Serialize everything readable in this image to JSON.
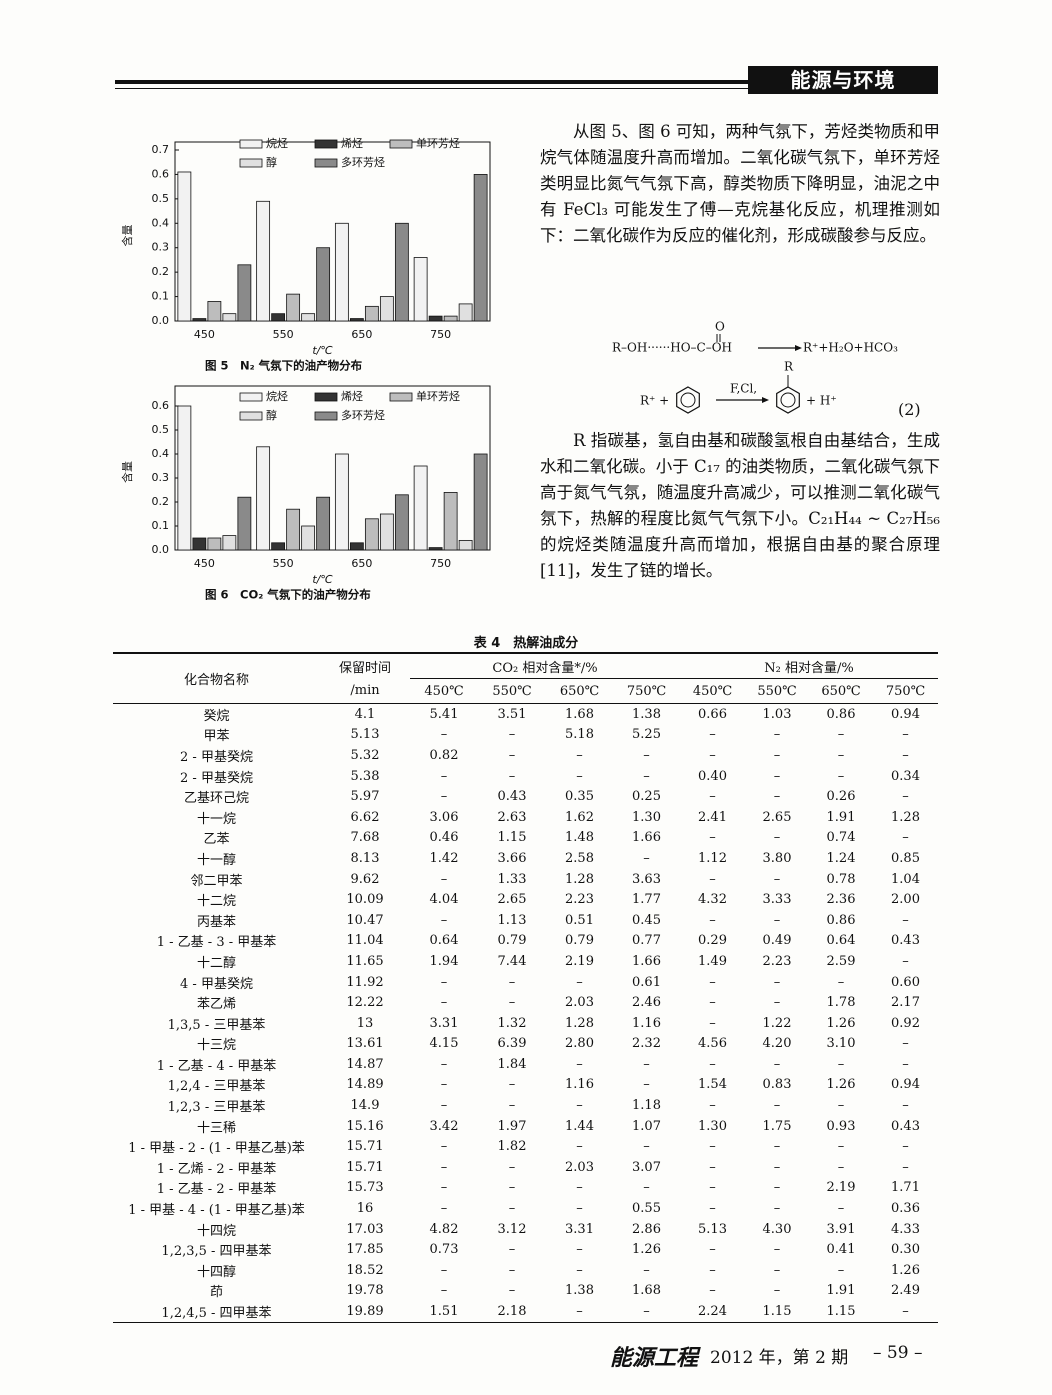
{
  "header": {
    "section": "能源与环境"
  },
  "chart_data": [
    {
      "type": "bar",
      "caption": "图 5　N₂ 气氛下的油产物分布",
      "ylabel": "含量",
      "xlabel": "t/℃",
      "categories": [
        "450",
        "550",
        "650",
        "750"
      ],
      "series": [
        {
          "name": "烷烃",
          "color": "#f2f2f2",
          "values": [
            0.61,
            0.49,
            0.4,
            0.26
          ]
        },
        {
          "name": "烯烃",
          "color": "#333333",
          "values": [
            0.01,
            0.03,
            0.01,
            0.02
          ]
        },
        {
          "name": "单环芳烃",
          "color": "#bdbdbd",
          "values": [
            0.08,
            0.11,
            0.06,
            0.02
          ]
        },
        {
          "name": "醇",
          "color": "#e0e0e0",
          "values": [
            0.03,
            0.03,
            0.1,
            0.07
          ]
        },
        {
          "name": "多环芳烃",
          "color": "#8a8a8a",
          "values": [
            0.23,
            0.3,
            0.4,
            0.6
          ]
        }
      ],
      "ylim": [
        0,
        0.7
      ],
      "yticks": [
        {
          "value": 0,
          "label": "0.0"
        },
        0.1,
        0.2,
        0.3,
        0.4,
        0.5,
        0.6,
        0.7
      ]
    },
    {
      "type": "bar",
      "caption": "图 6　CO₂ 气氛下的油产物分布",
      "ylabel": "含量",
      "xlabel": "t/℃",
      "categories": [
        "450",
        "550",
        "650",
        "750"
      ],
      "series": [
        {
          "name": "烷烃",
          "color": "#f2f2f2",
          "values": [
            0.6,
            0.43,
            0.4,
            0.35
          ]
        },
        {
          "name": "烯烃",
          "color": "#333333",
          "values": [
            0.05,
            0.03,
            0.03,
            0.01
          ]
        },
        {
          "name": "单环芳烃",
          "color": "#bdbdbd",
          "values": [
            0.05,
            0.17,
            0.13,
            0.24
          ]
        },
        {
          "name": "醇",
          "color": "#e0e0e0",
          "values": [
            0.06,
            0.1,
            0.15,
            0.04
          ]
        },
        {
          "name": "多环芳烃",
          "color": "#8a8a8a",
          "values": [
            0.22,
            0.22,
            0.23,
            0.4
          ]
        }
      ],
      "ylim": [
        0,
        0.65
      ],
      "yticks": [
        {
          "value": 0,
          "label": "0.0"
        },
        0.1,
        0.2,
        0.3,
        0.4,
        0.5,
        0.6
      ]
    }
  ],
  "body": {
    "paragraph1": "从图 5、图 6 可知，两种气氛下，芳烃类物质和甲烷气体随温度升高而增加。二氧化碳气氛下，单环芳烃类明显比氮气气氛下高，醇类物质下降明显，油泥之中有 FeCl₃ 可能发生了傅—克烷基化反应，机理推测如下：二氧化碳作为反应的催化剂，形成碳酸参与反应。",
    "equation": {
      "left": "R–OH······HO–C–OH",
      "oxygen": "O",
      "right": "R⁺+H₂O+HCO₃",
      "reactant": "R⁺ +",
      "catalyst": "F,Cl,",
      "substituent": "R",
      "product": "+ H⁺"
    },
    "equation_number": "(2)",
    "paragraph2": "R 指碳基，氢自由基和碳酸氢根自由基结合，生成水和二氧化碳。小于 C₁₇ 的油类物质，二氧化碳气氛下高于氮气气氛，随温度升高减少，可以推测二氧化碳气氛下，热解的程度比氮气气氛下小。C₂₁H₄₄ ~ C₂₇H₅₆ 的烷烃类随温度升高而增加，根据自由基的聚合原理[11]，发生了链的增长。"
  },
  "table": {
    "title": "表 4　热解油成分",
    "header": {
      "name": "化合物名称",
      "time": "保留时间",
      "time_unit": "/min",
      "co2": "CO₂ 相对含量*/%",
      "n2": "N₂ 相对含量/%",
      "temps_co2": [
        "450℃",
        "550℃",
        "650℃",
        "750℃"
      ],
      "temps_n2": [
        "450℃",
        "550℃",
        "650℃",
        "750℃"
      ]
    },
    "rows": [
      [
        "癸烷",
        "4.1",
        "5.41",
        "3.51",
        "1.68",
        "1.38",
        "0.66",
        "1.03",
        "0.86",
        "0.94"
      ],
      [
        "甲苯",
        "5.13",
        "–",
        "–",
        "5.18",
        "5.25",
        "–",
        "–",
        "–",
        "–"
      ],
      [
        "2 - 甲基癸烷",
        "5.32",
        "0.82",
        "–",
        "–",
        "–",
        "–",
        "–",
        "–",
        "–"
      ],
      [
        "2 - 甲基癸烷",
        "5.38",
        "–",
        "–",
        "–",
        "–",
        "0.40",
        "–",
        "–",
        "0.34"
      ],
      [
        "乙基环己烷",
        "5.97",
        "–",
        "0.43",
        "0.35",
        "0.25",
        "–",
        "–",
        "0.26",
        "–"
      ],
      [
        "十一烷",
        "6.62",
        "3.06",
        "2.63",
        "1.62",
        "1.30",
        "2.41",
        "2.65",
        "1.91",
        "1.28"
      ],
      [
        "乙苯",
        "7.68",
        "0.46",
        "1.15",
        "1.48",
        "1.66",
        "–",
        "–",
        "0.74",
        "–"
      ],
      [
        "十一醇",
        "8.13",
        "1.42",
        "3.66",
        "2.58",
        "–",
        "1.12",
        "3.80",
        "1.24",
        "0.85"
      ],
      [
        "邻二甲苯",
        "9.62",
        "–",
        "1.33",
        "1.28",
        "3.63",
        "–",
        "–",
        "0.78",
        "1.04"
      ],
      [
        "十二烷",
        "10.09",
        "4.04",
        "2.65",
        "2.23",
        "1.77",
        "4.32",
        "3.33",
        "2.36",
        "2.00"
      ],
      [
        "丙基苯",
        "10.47",
        "–",
        "1.13",
        "0.51",
        "0.45",
        "–",
        "–",
        "0.86",
        "–"
      ],
      [
        "1 - 乙基 - 3 - 甲基苯",
        "11.04",
        "0.64",
        "0.79",
        "0.79",
        "0.77",
        "0.29",
        "0.49",
        "0.64",
        "0.43"
      ],
      [
        "十二醇",
        "11.65",
        "1.94",
        "7.44",
        "2.19",
        "1.66",
        "1.49",
        "2.23",
        "2.59",
        "–"
      ],
      [
        "4 - 甲基癸烷",
        "11.92",
        "–",
        "–",
        "–",
        "0.61",
        "–",
        "–",
        "–",
        "0.60"
      ],
      [
        "苯乙烯",
        "12.22",
        "–",
        "–",
        "2.03",
        "2.46",
        "–",
        "–",
        "1.78",
        "2.17"
      ],
      [
        "1,3,5 - 三甲基苯",
        "13",
        "3.31",
        "1.32",
        "1.28",
        "1.16",
        "–",
        "1.22",
        "1.26",
        "0.92"
      ],
      [
        "十三烷",
        "13.61",
        "4.15",
        "6.39",
        "2.80",
        "2.32",
        "4.56",
        "4.20",
        "3.10",
        "–"
      ],
      [
        "1 - 乙基 - 4 - 甲基苯",
        "14.87",
        "–",
        "1.84",
        "–",
        "–",
        "–",
        "–",
        "–",
        "–"
      ],
      [
        "1,2,4 - 三甲基苯",
        "14.89",
        "–",
        "–",
        "1.16",
        "–",
        "1.54",
        "0.83",
        "1.26",
        "0.94"
      ],
      [
        "1,2,3 - 三甲基苯",
        "14.9",
        "–",
        "–",
        "–",
        "1.18",
        "–",
        "–",
        "–",
        "–"
      ],
      [
        "十三稀",
        "15.16",
        "3.42",
        "1.97",
        "1.44",
        "1.07",
        "1.30",
        "1.75",
        "0.93",
        "0.43"
      ],
      [
        "1 - 甲基 - 2 - (1 - 甲基乙基)苯",
        "15.71",
        "–",
        "1.82",
        "–",
        "–",
        "–",
        "–",
        "–",
        "–"
      ],
      [
        "1 - 乙烯 - 2 - 甲基苯",
        "15.71",
        "–",
        "–",
        "2.03",
        "3.07",
        "–",
        "–",
        "–",
        "–"
      ],
      [
        "1 - 乙基 - 2 - 甲基苯",
        "15.73",
        "–",
        "–",
        "–",
        "–",
        "–",
        "–",
        "2.19",
        "1.71"
      ],
      [
        "1 - 甲基 - 4 - (1 - 甲基乙基)苯",
        "16",
        "–",
        "–",
        "–",
        "0.55",
        "–",
        "–",
        "–",
        "0.36"
      ],
      [
        "十四烷",
        "17.03",
        "4.82",
        "3.12",
        "3.31",
        "2.86",
        "5.13",
        "4.30",
        "3.91",
        "4.33"
      ],
      [
        "1,2,3,5 - 四甲基苯",
        "17.85",
        "0.73",
        "–",
        "–",
        "1.26",
        "–",
        "–",
        "0.41",
        "0.30"
      ],
      [
        "十四醇",
        "18.52",
        "–",
        "–",
        "–",
        "–",
        "–",
        "–",
        "–",
        "1.26"
      ],
      [
        "茚",
        "19.78",
        "–",
        "–",
        "1.38",
        "1.68",
        "–",
        "–",
        "1.91",
        "2.49"
      ],
      [
        "1,2,4,5 - 四甲基苯",
        "19.89",
        "1.51",
        "2.18",
        "–",
        "–",
        "2.24",
        "1.15",
        "1.15",
        "–"
      ]
    ]
  },
  "footer": {
    "journal": "能源工程",
    "issue": "2012 年，第 2 期",
    "page": "– 59 –"
  }
}
